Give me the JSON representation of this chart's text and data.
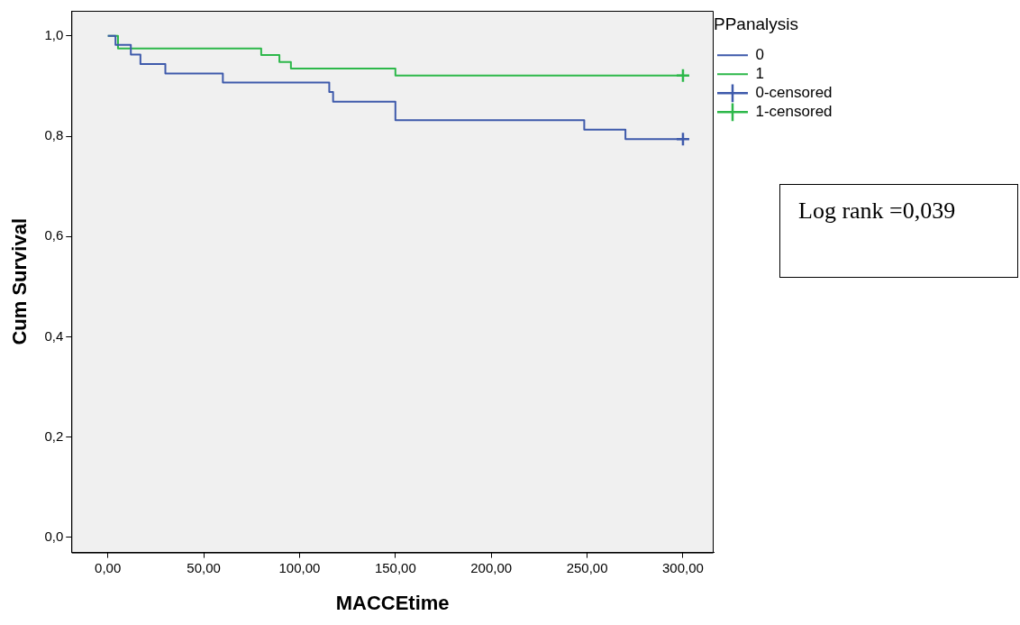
{
  "chart_data": {
    "type": "step",
    "xlabel": "MACCEtime",
    "ylabel": "Cum Survival",
    "legend_title": "PPanalysis",
    "legend": "top right",
    "grid": false,
    "xlim": [
      -19,
      316
    ],
    "ylim": [
      -0.03,
      1.05
    ],
    "xticks": [
      {
        "value": 0,
        "label": "0,00"
      },
      {
        "value": 50,
        "label": "50,00"
      },
      {
        "value": 100,
        "label": "100,00"
      },
      {
        "value": 150,
        "label": "150,00"
      },
      {
        "value": 200,
        "label": "200,00"
      },
      {
        "value": 250,
        "label": "250,00"
      },
      {
        "value": 300,
        "label": "300,00"
      }
    ],
    "yticks": [
      {
        "value": 0,
        "label": "0,0"
      },
      {
        "value": 0.2,
        "label": "0,2"
      },
      {
        "value": 0.4,
        "label": "0,4"
      },
      {
        "value": 0.6,
        "label": "0,6"
      },
      {
        "value": 0.8,
        "label": "0,8"
      },
      {
        "value": 1,
        "label": "1,0"
      }
    ],
    "series": [
      {
        "name": "0",
        "type": "step",
        "marker": "none",
        "color": "#3e5aab",
        "x": [
          0,
          4,
          12,
          17,
          30,
          60,
          115.5,
          117.5,
          150,
          248.5,
          270,
          300
        ],
        "values": [
          1,
          0.982,
          0.963,
          0.944,
          0.925,
          0.907,
          0.888,
          0.869,
          0.832,
          0.813,
          0.794,
          0.794
        ]
      },
      {
        "name": "1",
        "type": "step",
        "marker": "none",
        "color": "#2db84a",
        "x": [
          0,
          5.3,
          80,
          89.5,
          95.5,
          150,
          300
        ],
        "values": [
          1,
          0.975,
          0.962,
          0.948,
          0.935,
          0.921,
          0.921
        ]
      },
      {
        "name": "0-censored",
        "type": "scatter",
        "marker": "cross",
        "color": "#3e5aab",
        "x": [
          300
        ],
        "values": [
          0.794
        ]
      },
      {
        "name": "1-censored",
        "type": "scatter",
        "marker": "cross",
        "color": "#2db84a",
        "x": [
          300
        ],
        "values": [
          0.921
        ]
      }
    ],
    "annotations": [
      "Log rank =0,039"
    ]
  }
}
